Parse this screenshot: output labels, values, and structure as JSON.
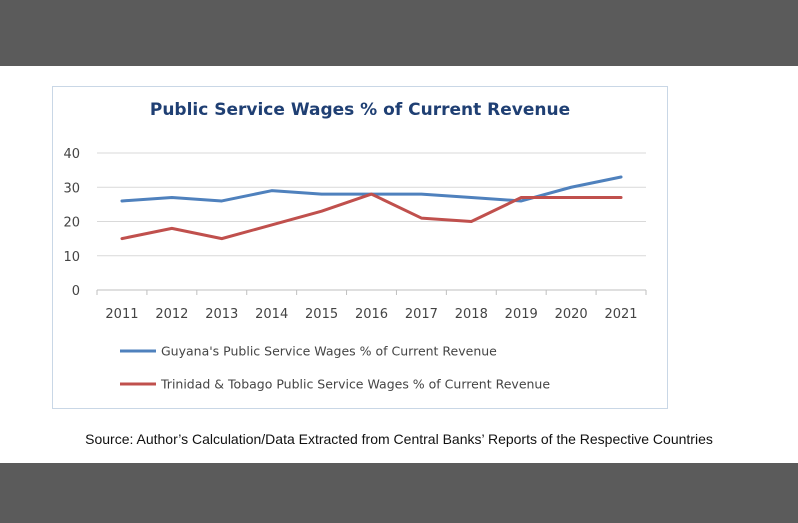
{
  "source_note": "Source: Author’s Calculation/Data Extracted from Central Banks’ Reports of the Respective Countries",
  "colors": {
    "guyana": "#4f81bd",
    "trinidad": "#c0504d",
    "grid": "#d9d9d9",
    "title": "#1f3f73"
  },
  "chart_data": {
    "type": "line",
    "title": "Public Service Wages % of Current Revenue",
    "xlabel": "",
    "ylabel": "",
    "categories": [
      "2011",
      "2012",
      "2013",
      "2014",
      "2015",
      "2016",
      "2017",
      "2018",
      "2019",
      "2020",
      "2021"
    ],
    "ylim": [
      0,
      40
    ],
    "yticks": [
      0,
      10,
      20,
      30,
      40
    ],
    "grid": true,
    "legend": "bottom",
    "series": [
      {
        "name": "Guyana's Public Service Wages % of Current Revenue",
        "color": "#4f81bd",
        "values": [
          26,
          27,
          26,
          29,
          28,
          28,
          28,
          27,
          26,
          30,
          33
        ]
      },
      {
        "name": "Trinidad & Tobago Public Service Wages % of Current Revenue",
        "color": "#c0504d",
        "values": [
          15,
          18,
          15,
          19,
          23,
          28,
          21,
          20,
          27,
          27,
          27
        ]
      }
    ]
  }
}
